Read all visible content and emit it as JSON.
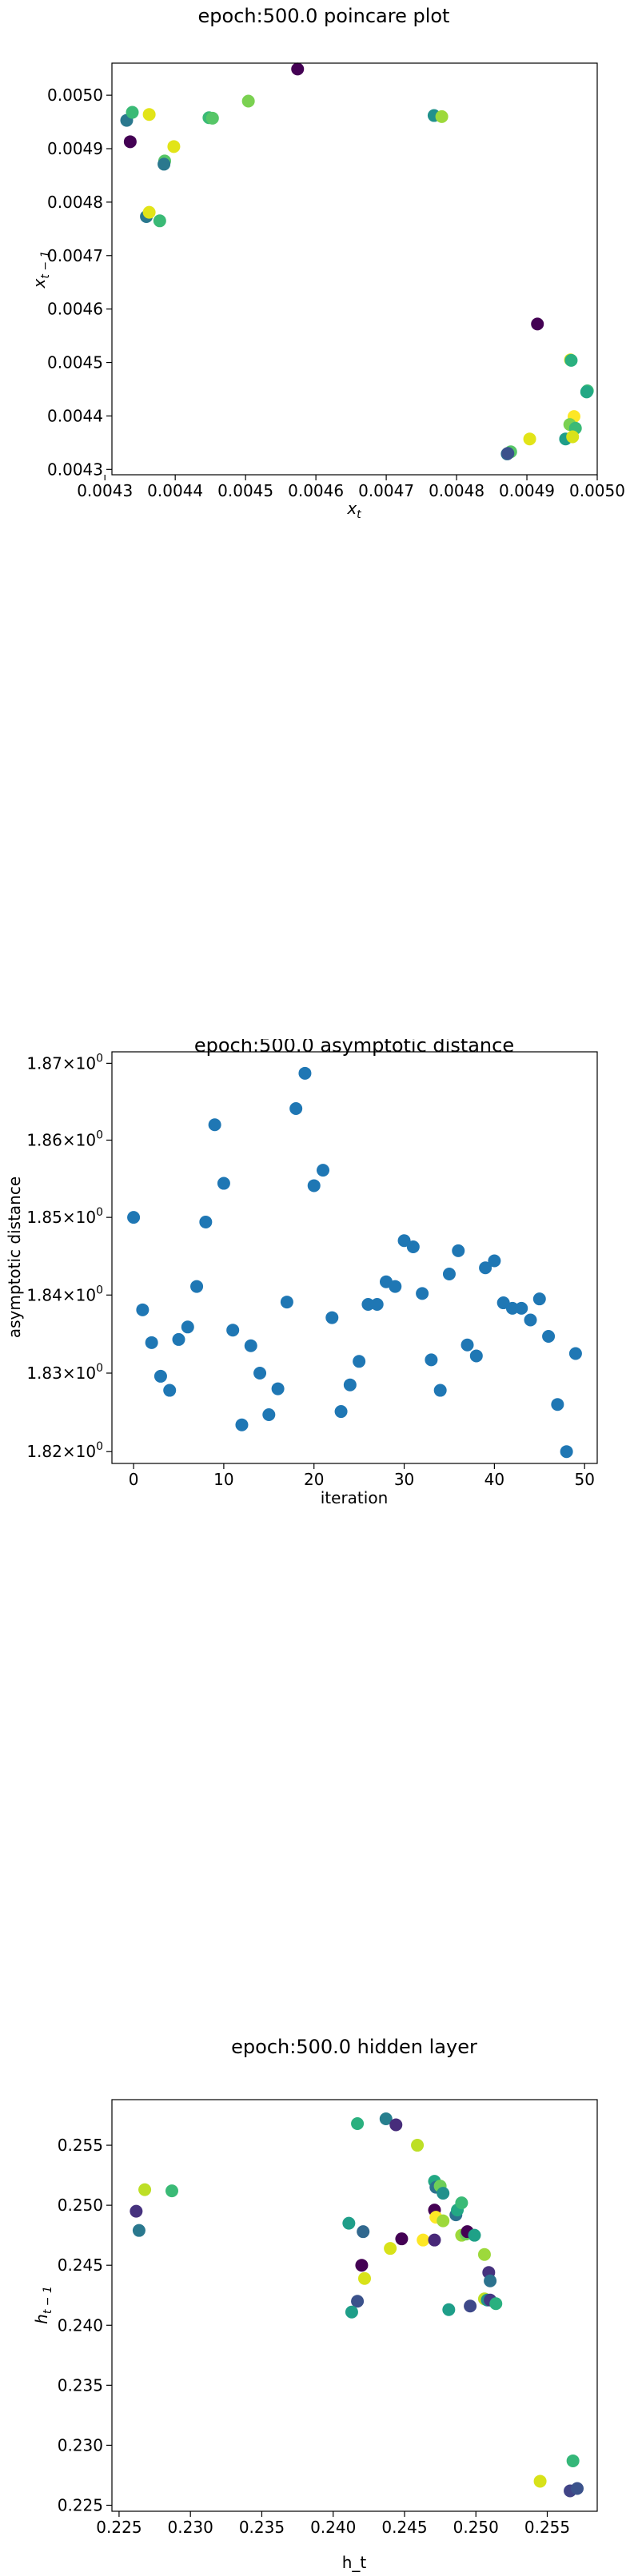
{
  "chart_data": [
    {
      "type": "scatter",
      "title": "epoch:500.0 poincare plot",
      "xlabel": "x_t",
      "ylabel": "x_{t-1}",
      "xlim": [
        0.00431,
        0.005
      ],
      "ylim": [
        0.00429,
        0.00506
      ],
      "xticks": [
        0.0043,
        0.0044,
        0.0045,
        0.0046,
        0.0047,
        0.0048,
        0.0049,
        0.005
      ],
      "yticks": [
        0.0043,
        0.0044,
        0.0045,
        0.0046,
        0.0047,
        0.0048,
        0.0049,
        0.005
      ],
      "xtick_labels": [
        "0.0043",
        "0.0044",
        "0.0045",
        "0.0046",
        "0.0047",
        "0.0048",
        "0.0049",
        "0.0050"
      ],
      "ytick_labels": [
        "0.0043",
        "0.0044",
        "0.0045",
        "0.0046",
        "0.0047",
        "0.0048",
        "0.0049",
        "0.0050"
      ],
      "grid": false,
      "colormap": "viridis",
      "points": [
        {
          "x": 0.004574,
          "y": 0.005049,
          "c": "#440154"
        },
        {
          "x": 0.004504,
          "y": 0.004989,
          "c": "#7ad151"
        },
        {
          "x": 0.004448,
          "y": 0.004958,
          "c": "#3aba76"
        },
        {
          "x": 0.004453,
          "y": 0.004957,
          "c": "#56c667"
        },
        {
          "x": 0.004331,
          "y": 0.004953,
          "c": "#2a788e"
        },
        {
          "x": 0.004339,
          "y": 0.004968,
          "c": "#3aba76"
        },
        {
          "x": 0.004363,
          "y": 0.004964,
          "c": "#e2e418"
        },
        {
          "x": 0.004336,
          "y": 0.004913,
          "c": "#440154"
        },
        {
          "x": 0.004398,
          "y": 0.004904,
          "c": "#e2e418"
        },
        {
          "x": 0.004385,
          "y": 0.004877,
          "c": "#56c667"
        },
        {
          "x": 0.004384,
          "y": 0.004871,
          "c": "#2a788e"
        },
        {
          "x": 0.004359,
          "y": 0.004773,
          "c": "#2a788e"
        },
        {
          "x": 0.004363,
          "y": 0.004781,
          "c": "#e2e418"
        },
        {
          "x": 0.004378,
          "y": 0.004765,
          "c": "#3aba76"
        },
        {
          "x": 0.004768,
          "y": 0.004962,
          "c": "#21918c"
        },
        {
          "x": 0.004779,
          "y": 0.00496,
          "c": "#9dd93b"
        },
        {
          "x": 0.004915,
          "y": 0.004572,
          "c": "#440154"
        },
        {
          "x": 0.004962,
          "y": 0.004505,
          "c": "#d8e219"
        },
        {
          "x": 0.004963,
          "y": 0.004504,
          "c": "#2ab07f"
        },
        {
          "x": 0.004986,
          "y": 0.004447,
          "c": "#3aba76"
        },
        {
          "x": 0.004985,
          "y": 0.004445,
          "c": "#22a884"
        },
        {
          "x": 0.004967,
          "y": 0.004399,
          "c": "#fde725"
        },
        {
          "x": 0.004961,
          "y": 0.004384,
          "c": "#7ad151"
        },
        {
          "x": 0.004969,
          "y": 0.004377,
          "c": "#3aba76"
        },
        {
          "x": 0.004955,
          "y": 0.004357,
          "c": "#1f9e89"
        },
        {
          "x": 0.004965,
          "y": 0.004361,
          "c": "#d8e219"
        },
        {
          "x": 0.004904,
          "y": 0.004357,
          "c": "#e2e418"
        },
        {
          "x": 0.004877,
          "y": 0.004333,
          "c": "#56c667"
        },
        {
          "x": 0.004872,
          "y": 0.004329,
          "c": "#2c728e"
        },
        {
          "x": 0.004873,
          "y": 0.00433,
          "c": "#3b528b"
        }
      ]
    },
    {
      "type": "scatter",
      "title": "epoch:500.0 asymptotic distance",
      "xlabel": "iteration",
      "ylabel": "asymptotic distance",
      "yscale": "log",
      "xlim": [
        -2.4,
        51.4
      ],
      "ylim": [
        1.8185,
        1.8715
      ],
      "xticks": [
        0,
        10,
        20,
        30,
        40,
        50
      ],
      "xtick_labels": [
        "0",
        "10",
        "20",
        "30",
        "40",
        "50"
      ],
      "yticks": [
        1.82,
        1.83,
        1.84,
        1.85,
        1.86,
        1.87
      ],
      "ytick_mantissas": [
        "1.82",
        "1.83",
        "1.84",
        "1.85",
        "1.86",
        "1.87"
      ],
      "ytick_base": "10",
      "ytick_exponent": "0",
      "grid": false,
      "color": "#1f77b4",
      "x": [
        0,
        1,
        2,
        3,
        4,
        5,
        6,
        7,
        8,
        9,
        10,
        11,
        12,
        13,
        14,
        15,
        16,
        17,
        18,
        19,
        20,
        21,
        22,
        23,
        24,
        25,
        26,
        27,
        28,
        29,
        30,
        31,
        32,
        33,
        34,
        35,
        36,
        37,
        38,
        39,
        40,
        41,
        42,
        43,
        44,
        45,
        46,
        47,
        48,
        49
      ],
      "y": [
        1.85,
        1.8381,
        1.8339,
        1.8296,
        1.8278,
        1.8343,
        1.8359,
        1.8411,
        1.8494,
        1.862,
        1.8544,
        1.8355,
        1.8234,
        1.8335,
        1.83,
        1.8247,
        1.828,
        1.8391,
        1.8641,
        1.8687,
        1.8541,
        1.8561,
        1.8371,
        1.8251,
        1.8285,
        1.8315,
        1.8388,
        1.8388,
        1.8417,
        1.8411,
        1.847,
        1.8462,
        1.8402,
        1.8317,
        1.8278,
        1.8427,
        1.8457,
        1.8336,
        1.8322,
        1.8435,
        1.8444,
        1.839,
        1.8383,
        1.8383,
        1.8368,
        1.8395,
        1.8347,
        1.826,
        1.82,
        1.8325
      ]
    },
    {
      "type": "scatter",
      "title": "epoch:500.0 hidden layer",
      "xlabel": "h_t",
      "ylabel": "h_{t-1}",
      "xlim": [
        0.2245,
        0.2585
      ],
      "ylim": [
        0.2245,
        0.2588
      ],
      "xticks": [
        0.225,
        0.23,
        0.235,
        0.24,
        0.245,
        0.25,
        0.255
      ],
      "yticks": [
        0.225,
        0.23,
        0.235,
        0.24,
        0.245,
        0.25,
        0.255
      ],
      "xtick_labels": [
        "0.225",
        "0.230",
        "0.235",
        "0.240",
        "0.245",
        "0.250",
        "0.255"
      ],
      "ytick_labels": [
        "0.225",
        "0.230",
        "0.235",
        "0.240",
        "0.245",
        "0.250",
        "0.255"
      ],
      "grid": false,
      "colormap": "viridis",
      "points": [
        {
          "x": 0.2262,
          "y": 0.2495,
          "c": "#46327e"
        },
        {
          "x": 0.2268,
          "y": 0.2513,
          "c": "#bddf26"
        },
        {
          "x": 0.2264,
          "y": 0.2479,
          "c": "#2a788e"
        },
        {
          "x": 0.2287,
          "y": 0.2512,
          "c": "#3aba76"
        },
        {
          "x": 0.2417,
          "y": 0.2568,
          "c": "#2ab07f"
        },
        {
          "x": 0.2437,
          "y": 0.2572,
          "c": "#277f8e"
        },
        {
          "x": 0.2444,
          "y": 0.2567,
          "c": "#472d7b"
        },
        {
          "x": 0.2459,
          "y": 0.255,
          "c": "#bddf26"
        },
        {
          "x": 0.2411,
          "y": 0.2485,
          "c": "#1f9e89"
        },
        {
          "x": 0.2421,
          "y": 0.2478,
          "c": "#31688e"
        },
        {
          "x": 0.242,
          "y": 0.245,
          "c": "#440154"
        },
        {
          "x": 0.2422,
          "y": 0.2439,
          "c": "#d8e219"
        },
        {
          "x": 0.2417,
          "y": 0.242,
          "c": "#3b528b"
        },
        {
          "x": 0.2413,
          "y": 0.2411,
          "c": "#1f9e89"
        },
        {
          "x": 0.244,
          "y": 0.2464,
          "c": "#d8e219"
        },
        {
          "x": 0.2448,
          "y": 0.2472,
          "c": "#440154"
        },
        {
          "x": 0.2463,
          "y": 0.2471,
          "c": "#fde725"
        },
        {
          "x": 0.2471,
          "y": 0.2471,
          "c": "#482878"
        },
        {
          "x": 0.2471,
          "y": 0.252,
          "c": "#22a884"
        },
        {
          "x": 0.2472,
          "y": 0.2515,
          "c": "#2c728e"
        },
        {
          "x": 0.2475,
          "y": 0.2516,
          "c": "#6ece58"
        },
        {
          "x": 0.2477,
          "y": 0.251,
          "c": "#21918c"
        },
        {
          "x": 0.2471,
          "y": 0.2496,
          "c": "#440154"
        },
        {
          "x": 0.2472,
          "y": 0.249,
          "c": "#fde725"
        },
        {
          "x": 0.2477,
          "y": 0.2487,
          "c": "#9dd93b"
        },
        {
          "x": 0.2486,
          "y": 0.2492,
          "c": "#2c728e"
        },
        {
          "x": 0.2487,
          "y": 0.2496,
          "c": "#22a884"
        },
        {
          "x": 0.249,
          "y": 0.2502,
          "c": "#3aba76"
        },
        {
          "x": 0.249,
          "y": 0.2475,
          "c": "#9dd93b"
        },
        {
          "x": 0.2493,
          "y": 0.2476,
          "c": "#6ece58"
        },
        {
          "x": 0.2494,
          "y": 0.2478,
          "c": "#440154"
        },
        {
          "x": 0.2499,
          "y": 0.2475,
          "c": "#1fa187"
        },
        {
          "x": 0.2481,
          "y": 0.2413,
          "c": "#1f9e89"
        },
        {
          "x": 0.2496,
          "y": 0.2416,
          "c": "#3e4989"
        },
        {
          "x": 0.2506,
          "y": 0.2459,
          "c": "#9dd93b"
        },
        {
          "x": 0.2509,
          "y": 0.2444,
          "c": "#46327e"
        },
        {
          "x": 0.251,
          "y": 0.2437,
          "c": "#2c728e"
        },
        {
          "x": 0.2506,
          "y": 0.2422,
          "c": "#bddf26"
        },
        {
          "x": 0.2508,
          "y": 0.2421,
          "c": "#21918c"
        },
        {
          "x": 0.251,
          "y": 0.2421,
          "c": "#443983"
        },
        {
          "x": 0.2514,
          "y": 0.2418,
          "c": "#2ab07f"
        },
        {
          "x": 0.2568,
          "y": 0.2287,
          "c": "#35b779"
        },
        {
          "x": 0.2545,
          "y": 0.227,
          "c": "#d8e219"
        },
        {
          "x": 0.2566,
          "y": 0.2262,
          "c": "#414487"
        },
        {
          "x": 0.2571,
          "y": 0.2264,
          "c": "#3b528b"
        }
      ]
    }
  ]
}
